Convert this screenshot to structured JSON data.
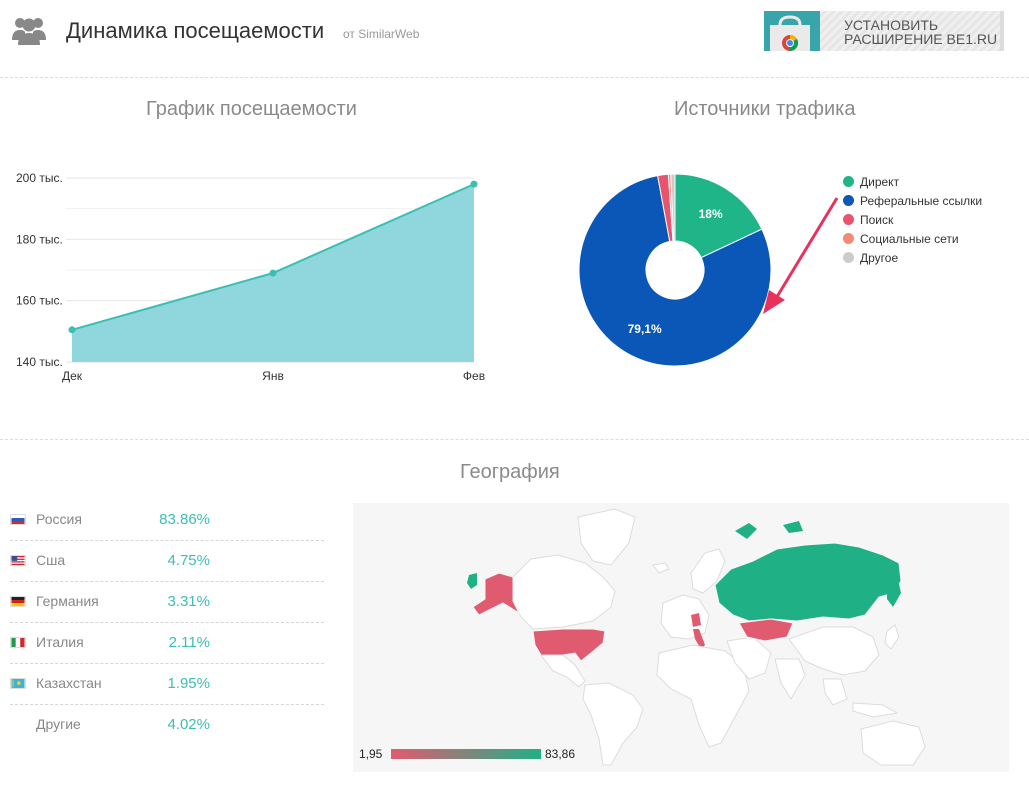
{
  "header": {
    "title": "Динамика посещаемости",
    "source": "от SimilarWeb",
    "extension_line1": "УСТАНОВИТЬ",
    "extension_line2": "РАСШИРЕНИЕ BE1.RU",
    "icon": "users-icon"
  },
  "sections": {
    "visits_title": "График посещаемости",
    "traffic_title": "Источники трафика",
    "geo_title": "География"
  },
  "colors": {
    "accent": "#3bbeb3",
    "area_fill": "#8fd7dc",
    "line": "#3bbeb3",
    "direct": "#1fb588",
    "referral": "#0a57b7",
    "search": "#e8536d",
    "social": "#f28a76",
    "other": "#cccccc",
    "map_high": "#20b086",
    "map_low": "#e05b6f"
  },
  "chart_data": [
    {
      "type": "area",
      "title": "График посещаемости",
      "categories": [
        "Дек",
        "Янв",
        "Фев"
      ],
      "values": [
        150500,
        169000,
        198000
      ],
      "ylim": [
        140000,
        200000
      ],
      "yticks": [
        "140 тыс.",
        "160 тыс.",
        "180 тыс.",
        "200 тыс."
      ],
      "ytick_values": [
        140000,
        160000,
        180000,
        200000
      ],
      "grid": true
    },
    {
      "type": "pie",
      "title": "Источники трафика",
      "donut": true,
      "labels": [
        "Директ",
        "Реферальные ссылки",
        "Поиск",
        "Социальные сети",
        "Другое"
      ],
      "values": [
        18,
        79.1,
        1.8,
        0.4,
        0.7
      ],
      "data_labels": [
        "18%",
        "79,1%",
        "",
        "",
        ""
      ],
      "legend_position": "right"
    }
  ],
  "geography": {
    "rows": [
      {
        "country": "Россия",
        "value": "83.86%",
        "flag": "ru"
      },
      {
        "country": "Сша",
        "value": "4.75%",
        "flag": "us"
      },
      {
        "country": "Германия",
        "value": "3.31%",
        "flag": "de"
      },
      {
        "country": "Италия",
        "value": "2.11%",
        "flag": "it"
      },
      {
        "country": "Казахстан",
        "value": "1.95%",
        "flag": "kz"
      },
      {
        "country": "Другие",
        "value": "4.02%",
        "flag": ""
      }
    ],
    "scale_min": "1,95",
    "scale_max": "83,86"
  }
}
